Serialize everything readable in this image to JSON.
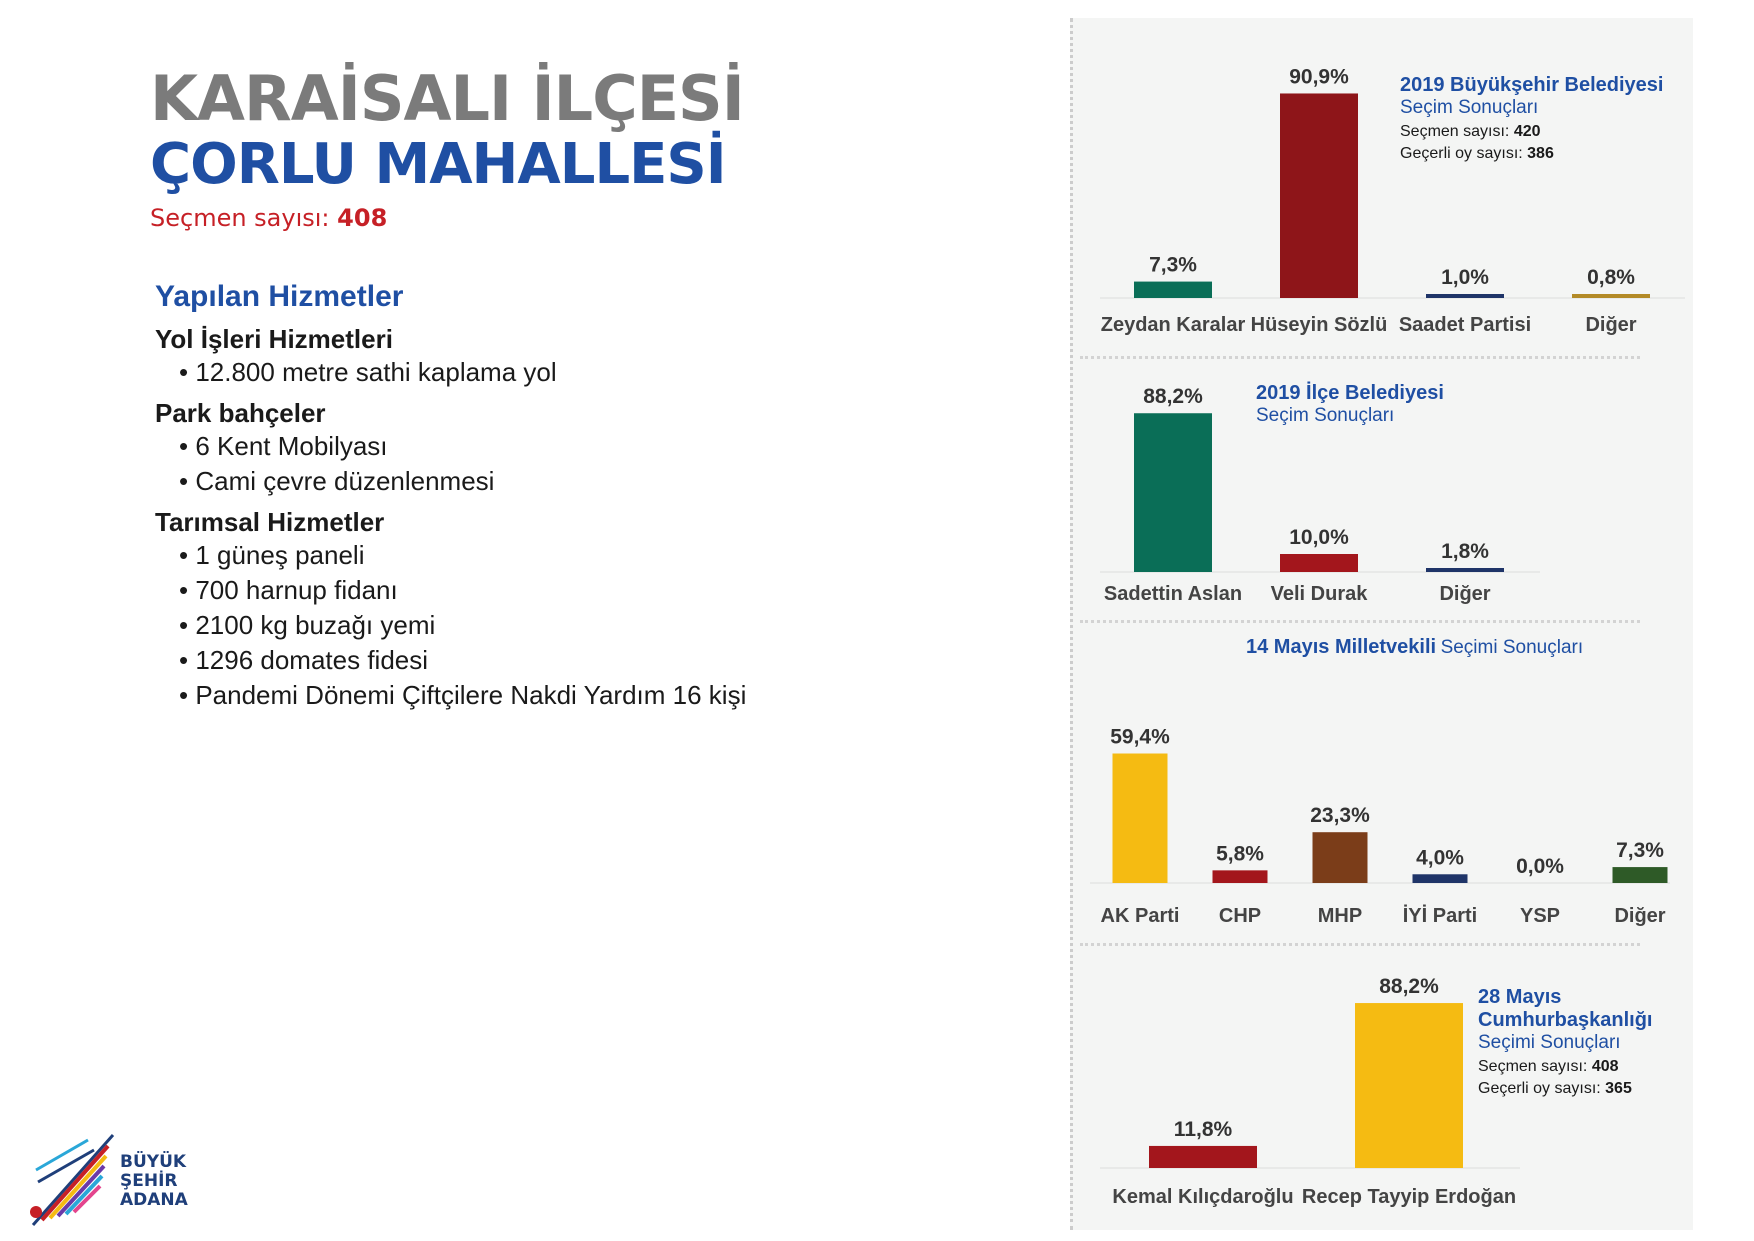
{
  "header": {
    "district": "KARAİSALI İLÇESİ",
    "neighborhood": "ÇORLU MAHALLESİ",
    "voters_label": "Seçmen sayısı:",
    "voters_value": "408"
  },
  "services": {
    "heading": "Yapılan Hizmetler",
    "categories": [
      {
        "name": "Yol İşleri Hizmetleri",
        "items": [
          "12.800 metre sathi kaplama yol"
        ]
      },
      {
        "name": "Park bahçeler",
        "items": [
          "6 Kent Mobilyası",
          "Cami çevre düzenlenmesi"
        ]
      },
      {
        "name": "Tarımsal Hizmetler",
        "items": [
          "1 güneş paneli",
          "700 harnup fidanı",
          "2100 kg buzağı yemi",
          "1296 domates fidesi",
          "Pandemi Dönemi Çiftçilere Nakdi Yardım 16 kişi"
        ]
      }
    ]
  },
  "logo": {
    "line1": "BÜYÜK",
    "line2": "ŞEHİR",
    "line3": "ADANA"
  },
  "chart_data": [
    {
      "type": "bar",
      "title": "2019 Büyükşehir Belediyesi",
      "subtitle": "Seçim Sonuçları",
      "info": [
        {
          "label": "Seçmen sayısı:",
          "value": "420"
        },
        {
          "label": "Geçerli oy sayısı:",
          "value": "386"
        }
      ],
      "categories": [
        "Zeydan Karalar",
        "Hüseyin Sözlü",
        "Saadet Partisi",
        "Diğer"
      ],
      "values": [
        7.3,
        90.9,
        1.0,
        0.8
      ],
      "labels": [
        "7,3%",
        "90,9%",
        "1,0%",
        "0,8%"
      ],
      "colors": [
        "#0a6e57",
        "#8e1519",
        "#1f3468",
        "#b38a27"
      ]
    },
    {
      "type": "bar",
      "title": "2019 İlçe Belediyesi",
      "subtitle": "Seçim Sonuçları",
      "categories": [
        "Sadettin Aslan",
        "Veli Durak",
        "Diğer"
      ],
      "values": [
        88.2,
        10.0,
        1.8
      ],
      "labels": [
        "88,2%",
        "10,0%",
        "1,8%"
      ],
      "colors": [
        "#0a6e57",
        "#a3161c",
        "#1f3468"
      ]
    },
    {
      "type": "bar",
      "title": "14 Mayıs Milletvekili",
      "subtitle": "Seçimi Sonuçları",
      "categories": [
        "AK Parti",
        "CHP",
        "MHP",
        "İYİ Parti",
        "YSP",
        "Diğer"
      ],
      "values": [
        59.4,
        5.8,
        23.3,
        4.0,
        0.0,
        7.3
      ],
      "labels": [
        "59,4%",
        "5,8%",
        "23,3%",
        "4,0%",
        "0,0%",
        "7,3%"
      ],
      "colors": [
        "#f5bb12",
        "#a3161c",
        "#7b3d19",
        "#1f3468",
        "#6b3aa8",
        "#2e5a27"
      ]
    },
    {
      "type": "bar",
      "title": "28 Mayıs Cumhurbaşkanlığı",
      "subtitle": "Seçimi Sonuçları",
      "info": [
        {
          "label": "Seçmen sayısı:",
          "value": "408"
        },
        {
          "label": "Geçerli oy sayısı:",
          "value": "365"
        }
      ],
      "categories": [
        "Kemal Kılıçdaroğlu",
        "Recep Tayyip Erdoğan"
      ],
      "values": [
        11.8,
        88.2
      ],
      "labels": [
        "11,8%",
        "88,2%"
      ],
      "colors": [
        "#a3161c",
        "#f5bb12"
      ]
    }
  ]
}
